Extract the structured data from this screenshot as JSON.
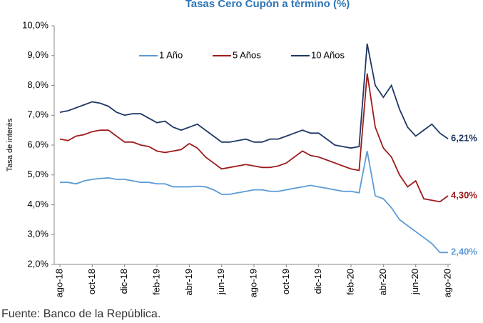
{
  "chart_data": {
    "type": "line",
    "title": "Tasas Cero Cupón a término (%)",
    "y_label": "Tasa de interés",
    "categories": [
      "ago-18",
      null,
      null,
      null,
      "oct-18",
      null,
      null,
      null,
      "dic-18",
      null,
      null,
      null,
      "feb-19",
      null,
      null,
      null,
      "abr-19",
      null,
      null,
      null,
      "jun-19",
      null,
      null,
      null,
      "ago-19",
      null,
      null,
      null,
      "oct-19",
      null,
      null,
      null,
      "dic-19",
      null,
      null,
      null,
      "feb-20",
      null,
      null,
      null,
      "abr-20",
      null,
      null,
      null,
      "jun-20",
      null,
      null,
      null,
      "ago-20"
    ],
    "series": [
      {
        "name": "1 Año",
        "color": "#5b9bd5",
        "values": [
          4.75,
          4.75,
          4.7,
          4.8,
          4.85,
          4.88,
          4.9,
          4.85,
          4.85,
          4.8,
          4.75,
          4.75,
          4.7,
          4.7,
          4.6,
          4.6,
          4.6,
          4.62,
          4.6,
          4.5,
          4.35,
          4.35,
          4.4,
          4.45,
          4.5,
          4.5,
          4.45,
          4.45,
          4.5,
          4.55,
          4.6,
          4.65,
          4.6,
          4.55,
          4.5,
          4.45,
          4.45,
          4.4,
          5.8,
          4.3,
          4.2,
          3.9,
          3.5,
          3.3,
          3.1,
          2.9,
          2.7,
          2.4,
          2.4
        ],
        "value_labels": [
          null,
          null,
          null,
          null,
          null,
          null,
          null,
          null,
          null,
          null,
          null,
          null,
          null,
          null,
          null,
          null,
          null,
          null,
          null,
          null,
          null,
          null,
          null,
          null,
          null,
          null,
          null,
          null,
          null,
          null,
          null,
          null,
          null,
          null,
          null,
          null,
          null,
          null,
          null,
          null,
          null,
          null,
          null,
          null,
          null,
          null,
          null,
          null,
          "2,40%"
        ]
      },
      {
        "name": "5 Años",
        "color": "#9e1b1b",
        "values": [
          6.2,
          6.15,
          6.3,
          6.35,
          6.45,
          6.5,
          6.5,
          6.3,
          6.1,
          6.1,
          6.0,
          5.95,
          5.8,
          5.75,
          5.8,
          5.85,
          6.05,
          5.9,
          5.6,
          5.4,
          5.2,
          5.25,
          5.3,
          5.35,
          5.3,
          5.25,
          5.25,
          5.3,
          5.4,
          5.6,
          5.8,
          5.65,
          5.6,
          5.5,
          5.4,
          5.3,
          5.2,
          5.15,
          8.4,
          6.6,
          5.9,
          5.6,
          5.0,
          4.6,
          4.8,
          4.2,
          4.15,
          4.1,
          4.3
        ],
        "value_labels": [
          null,
          null,
          null,
          null,
          null,
          null,
          null,
          null,
          null,
          null,
          null,
          null,
          null,
          null,
          null,
          null,
          null,
          null,
          null,
          null,
          null,
          null,
          null,
          null,
          null,
          null,
          null,
          null,
          null,
          null,
          null,
          null,
          null,
          null,
          null,
          null,
          null,
          null,
          null,
          null,
          null,
          null,
          null,
          null,
          null,
          null,
          null,
          null,
          "4,30%"
        ]
      },
      {
        "name": "10 Años",
        "color": "#1f3864",
        "values": [
          7.1,
          7.15,
          7.25,
          7.35,
          7.45,
          7.4,
          7.3,
          7.1,
          7.0,
          7.05,
          7.05,
          6.9,
          6.75,
          6.8,
          6.6,
          6.5,
          6.6,
          6.7,
          6.5,
          6.3,
          6.1,
          6.1,
          6.15,
          6.2,
          6.1,
          6.1,
          6.2,
          6.2,
          6.3,
          6.4,
          6.5,
          6.4,
          6.4,
          6.2,
          6.0,
          5.95,
          5.9,
          5.95,
          9.4,
          8.0,
          7.6,
          8.0,
          7.2,
          6.6,
          6.3,
          6.5,
          6.7,
          6.4,
          6.21
        ],
        "value_labels": [
          null,
          null,
          null,
          null,
          null,
          null,
          null,
          null,
          null,
          null,
          null,
          null,
          null,
          null,
          null,
          null,
          null,
          null,
          null,
          null,
          null,
          null,
          null,
          null,
          null,
          null,
          null,
          null,
          null,
          null,
          null,
          null,
          null,
          null,
          null,
          null,
          null,
          null,
          null,
          null,
          null,
          null,
          null,
          null,
          null,
          null,
          null,
          null,
          "6,21%"
        ]
      }
    ],
    "ylim": [
      2,
      10
    ],
    "yticks": [
      {
        "value": 2,
        "label": "2,0%"
      },
      {
        "value": 3,
        "label": "3,0%"
      },
      {
        "value": 4,
        "label": "4,0%"
      },
      {
        "value": 5,
        "label": "5,0%"
      },
      {
        "value": 6,
        "label": "6,0%"
      },
      {
        "value": 7,
        "label": "7,0%"
      },
      {
        "value": 8,
        "label": "8,0%"
      },
      {
        "value": 9,
        "label": "9,0%"
      },
      {
        "value": 10,
        "label": "10,0%"
      }
    ],
    "legend": "top"
  },
  "source": "Fuente: Banco de la República."
}
